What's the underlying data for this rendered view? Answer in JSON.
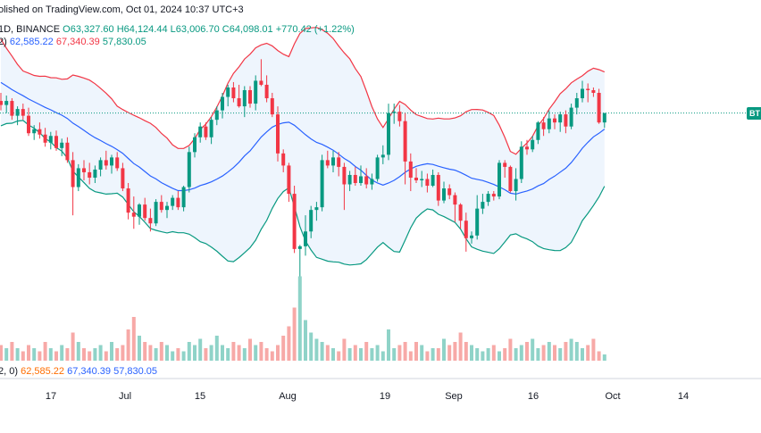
{
  "header": {
    "line1": "olished on TradingView.com, Oct 01, 2024 10:37 UTC+3",
    "line2": {
      "symbol": "1D, BINANCE",
      "open": "O63,327.60",
      "high": "H64,124.44",
      "low": "L63,006.70",
      "close": "C64,098.01",
      "change": "+770.42 (+1.22%)"
    },
    "line3": {
      "prefix": "2)",
      "basis": "62,585.22",
      "upper": "67,340.39",
      "lower": "57,830.05"
    },
    "line4": {
      "prefix": "2, 0)",
      "basis": "62,585.22",
      "upper": "67,340.39",
      "lower": "57,830.05"
    }
  },
  "ticker_badge": "BT",
  "colors": {
    "up": "#089981",
    "down": "#f23645",
    "vol_up": "#8fd3c8",
    "vol_down": "#f7a9a7",
    "basis": "#2962ff",
    "upper": "#f23645",
    "lower": "#089981",
    "band_fill": "#eaf2fd"
  },
  "chart_data": {
    "type": "candlestick",
    "title": "",
    "x_tick_labels": [
      "17",
      "Jul",
      "15",
      "Aug",
      "19",
      "Sep",
      "16",
      "Oct",
      "14"
    ],
    "current_price": 64098.01,
    "candles": [
      [
        65000,
        65600,
        64300,
        64700
      ],
      [
        64700,
        65400,
        64100,
        65000
      ],
      [
        65000,
        65200,
        63600,
        63900
      ],
      [
        63900,
        64600,
        63200,
        64400
      ],
      [
        64400,
        64800,
        63600,
        63900
      ],
      [
        63900,
        64500,
        62400,
        62600
      ],
      [
        62600,
        63200,
        62100,
        62900
      ],
      [
        62900,
        63400,
        62200,
        62500
      ],
      [
        62500,
        63000,
        61600,
        61900
      ],
      [
        61900,
        62700,
        61400,
        62400
      ],
      [
        62400,
        62800,
        61300,
        61500
      ],
      [
        61500,
        62200,
        60900,
        61900
      ],
      [
        61900,
        62300,
        60400,
        60600
      ],
      [
        60600,
        61200,
        56500,
        58600
      ],
      [
        58600,
        60300,
        58300,
        60000
      ],
      [
        60000,
        60600,
        59100,
        59700
      ],
      [
        59700,
        60400,
        58800,
        59300
      ],
      [
        59300,
        60200,
        58900,
        59900
      ],
      [
        59900,
        60800,
        59400,
        60600
      ],
      [
        60600,
        61300,
        59900,
        60200
      ],
      [
        60200,
        61000,
        59600,
        60800
      ],
      [
        60800,
        61200,
        59800,
        60000
      ],
      [
        60000,
        60400,
        58300,
        58500
      ],
      [
        58500,
        58900,
        56200,
        56700
      ],
      [
        56700,
        57900,
        55500,
        56400
      ],
      [
        56400,
        57400,
        55800,
        57300
      ],
      [
        57300,
        57800,
        56100,
        56300
      ],
      [
        56300,
        57000,
        55300,
        55900
      ],
      [
        55900,
        57700,
        55700,
        57500
      ],
      [
        57500,
        58000,
        56700,
        56900
      ],
      [
        56900,
        57500,
        56300,
        57200
      ],
      [
        57200,
        58000,
        56900,
        57800
      ],
      [
        57800,
        58300,
        56900,
        57100
      ],
      [
        57100,
        58700,
        56800,
        58600
      ],
      [
        58600,
        61600,
        58200,
        61200
      ],
      [
        61200,
        62600,
        60800,
        62300
      ],
      [
        62300,
        63400,
        61900,
        63100
      ],
      [
        63100,
        63400,
        62100,
        62300
      ],
      [
        62300,
        63800,
        61800,
        63600
      ],
      [
        63600,
        64600,
        63200,
        64300
      ],
      [
        64300,
        65600,
        63700,
        65300
      ],
      [
        65300,
        66200,
        64600,
        66000
      ],
      [
        66000,
        66400,
        64900,
        65200
      ],
      [
        65200,
        66200,
        64500,
        64600
      ],
      [
        64600,
        66100,
        63800,
        65800
      ],
      [
        65800,
        66100,
        64500,
        64800
      ],
      [
        64800,
        66900,
        64300,
        66500
      ],
      [
        66500,
        68100,
        66100,
        66200
      ],
      [
        66200,
        66900,
        64900,
        65200
      ],
      [
        65200,
        65600,
        63800,
        64000
      ],
      [
        64000,
        64600,
        60500,
        61100
      ],
      [
        61100,
        61400,
        59700,
        60200
      ],
      [
        60200,
        60400,
        57500,
        58100
      ],
      [
        58100,
        58700,
        53700,
        54000
      ],
      [
        54000,
        54300,
        49100,
        54200
      ],
      [
        54200,
        56500,
        53500,
        55300
      ],
      [
        55300,
        57200,
        54800,
        56900
      ],
      [
        56900,
        57500,
        56100,
        57100
      ],
      [
        57100,
        61000,
        56800,
        60600
      ],
      [
        60600,
        61300,
        60000,
        60200
      ],
      [
        60200,
        61300,
        59700,
        60800
      ],
      [
        60800,
        61200,
        59400,
        60100
      ],
      [
        60100,
        60400,
        56900,
        58800
      ],
      [
        58800,
        59800,
        58300,
        59500
      ],
      [
        59500,
        60100,
        58700,
        58900
      ],
      [
        58900,
        60200,
        58700,
        59400
      ],
      [
        59400,
        60000,
        58500,
        58800
      ],
      [
        58800,
        59600,
        58400,
        59200
      ],
      [
        59200,
        61000,
        59000,
        60800
      ],
      [
        60800,
        61700,
        60300,
        61000
      ],
      [
        61000,
        64800,
        60600,
        64100
      ],
      [
        64100,
        64800,
        63300,
        64200
      ],
      [
        64200,
        64700,
        63100,
        63500
      ],
      [
        63500,
        64100,
        58800,
        60500
      ],
      [
        60500,
        61100,
        58300,
        59300
      ],
      [
        59300,
        60000,
        58900,
        59100
      ],
      [
        59100,
        59800,
        58600,
        59200
      ],
      [
        59200,
        59600,
        58200,
        58700
      ],
      [
        58700,
        59900,
        58600,
        59500
      ],
      [
        59500,
        59700,
        57200,
        57600
      ],
      [
        57600,
        59000,
        57400,
        58500
      ],
      [
        58500,
        58800,
        57700,
        58000
      ],
      [
        58000,
        58200,
        56000,
        57300
      ],
      [
        57300,
        57400,
        55500,
        56100
      ],
      [
        56100,
        56700,
        53800,
        54800
      ],
      [
        54800,
        55300,
        54400,
        55000
      ],
      [
        55000,
        58000,
        54700,
        57000
      ],
      [
        57000,
        58100,
        56600,
        57500
      ],
      [
        57500,
        58300,
        57200,
        58100
      ],
      [
        58100,
        58300,
        57600,
        57900
      ],
      [
        57900,
        60600,
        57700,
        60400
      ],
      [
        60400,
        60600,
        59300,
        60100
      ],
      [
        60100,
        60200,
        58200,
        58300
      ],
      [
        58300,
        60000,
        57600,
        59200
      ],
      [
        59200,
        62000,
        58900,
        61600
      ],
      [
        61600,
        62100,
        61000,
        61400
      ],
      [
        61400,
        62400,
        61200,
        62100
      ],
      [
        62100,
        63500,
        61800,
        63400
      ],
      [
        63400,
        63800,
        62400,
        62900
      ],
      [
        62900,
        64300,
        62600,
        63700
      ],
      [
        63700,
        64000,
        62900,
        63400
      ],
      [
        63400,
        64200,
        62700,
        64000
      ],
      [
        64000,
        64300,
        62600,
        63100
      ],
      [
        63100,
        64800,
        62900,
        64500
      ],
      [
        64500,
        65600,
        64000,
        65200
      ],
      [
        65200,
        66500,
        64900,
        65900
      ],
      [
        65900,
        66300,
        64900,
        65800
      ],
      [
        65800,
        66000,
        65300,
        65600
      ],
      [
        65600,
        65900,
        63300,
        63400
      ],
      [
        63400,
        64100,
        63000,
        64100
      ]
    ],
    "volume": [
      5,
      4,
      6,
      4,
      3,
      5,
      4,
      3,
      6,
      4,
      3,
      5,
      4,
      9,
      6,
      4,
      3,
      4,
      5,
      3,
      6,
      4,
      5,
      10,
      14,
      8,
      6,
      5,
      4,
      6,
      5,
      3,
      4,
      3,
      6,
      5,
      7,
      4,
      5,
      8,
      5,
      4,
      6,
      5,
      4,
      7,
      5,
      6,
      4,
      3,
      5,
      8,
      11,
      17,
      27,
      13,
      9,
      7,
      6,
      5,
      4,
      3,
      7,
      4,
      5,
      4,
      6,
      4,
      5,
      3,
      10,
      4,
      5,
      6,
      3,
      6,
      5,
      3,
      4,
      4,
      7,
      5,
      6,
      9,
      6,
      5,
      4,
      3,
      4,
      5,
      3,
      4,
      7,
      4,
      5,
      6,
      7,
      4,
      5,
      6,
      5,
      4,
      6,
      7,
      6,
      4,
      5,
      7,
      3,
      2
    ],
    "bollinger": {
      "period": 20,
      "mult": 2,
      "basis_last": 62585.22,
      "upper_last": 67340.39,
      "lower_last": 57830.05
    },
    "grid": false,
    "ylim": [
      45500,
      72500
    ]
  }
}
